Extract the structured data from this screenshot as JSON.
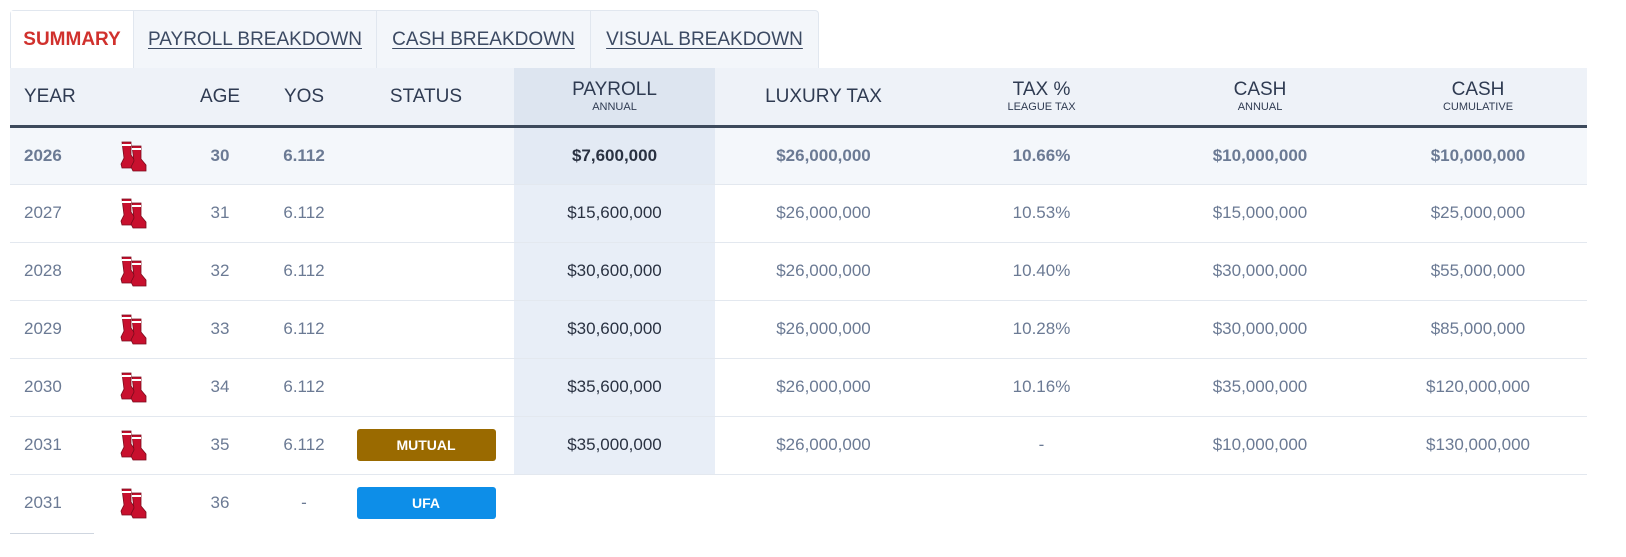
{
  "tabs": [
    {
      "label": "SUMMARY",
      "active": true
    },
    {
      "label": "PAYROLL BREAKDOWN",
      "active": false
    },
    {
      "label": "CASH BREAKDOWN",
      "active": false
    },
    {
      "label": "VISUAL BREAKDOWN",
      "active": false
    }
  ],
  "table": {
    "headers": {
      "year": "YEAR",
      "age": "AGE",
      "yos": "YOS",
      "status": "STATUS",
      "payroll": "PAYROLL",
      "payroll_sub": "ANNUAL",
      "luxury_tax": "LUXURY TAX",
      "tax_pct": "TAX %",
      "tax_pct_sub": "LEAGUE TAX",
      "cash": "CASH",
      "cash_sub": "ANNUAL",
      "cash_cum": "CASH",
      "cash_cum_sub": "CUMULATIVE"
    },
    "rows": [
      {
        "year": "2026",
        "team_icon": "red-sox-logo-icon",
        "age": "30",
        "yos": "6.112",
        "status": "",
        "payroll": "$7,600,000",
        "luxury_tax": "$26,000,000",
        "tax_pct": "10.66%",
        "cash": "$10,000,000",
        "cash_cum": "$10,000,000"
      },
      {
        "year": "2027",
        "team_icon": "red-sox-logo-icon",
        "age": "31",
        "yos": "6.112",
        "status": "",
        "payroll": "$15,600,000",
        "luxury_tax": "$26,000,000",
        "tax_pct": "10.53%",
        "cash": "$15,000,000",
        "cash_cum": "$25,000,000"
      },
      {
        "year": "2028",
        "team_icon": "red-sox-logo-icon",
        "age": "32",
        "yos": "6.112",
        "status": "",
        "payroll": "$30,600,000",
        "luxury_tax": "$26,000,000",
        "tax_pct": "10.40%",
        "cash": "$30,000,000",
        "cash_cum": "$55,000,000"
      },
      {
        "year": "2029",
        "team_icon": "red-sox-logo-icon",
        "age": "33",
        "yos": "6.112",
        "status": "",
        "payroll": "$30,600,000",
        "luxury_tax": "$26,000,000",
        "tax_pct": "10.28%",
        "cash": "$30,000,000",
        "cash_cum": "$85,000,000"
      },
      {
        "year": "2030",
        "team_icon": "red-sox-logo-icon",
        "age": "34",
        "yos": "6.112",
        "status": "",
        "payroll": "$35,600,000",
        "luxury_tax": "$26,000,000",
        "tax_pct": "10.16%",
        "cash": "$35,000,000",
        "cash_cum": "$120,000,000"
      },
      {
        "year": "2031",
        "team_icon": "red-sox-logo-icon",
        "age": "35",
        "yos": "6.112",
        "status": "MUTUAL",
        "payroll": "$35,000,000",
        "luxury_tax": "$26,000,000",
        "tax_pct": "-",
        "cash": "$10,000,000",
        "cash_cum": "$130,000,000"
      },
      {
        "year": "2031",
        "team_icon": "red-sox-logo-icon",
        "age": "36",
        "yos": "-",
        "status": "UFA",
        "payroll": "",
        "luxury_tax": "",
        "tax_pct": "",
        "cash": "",
        "cash_cum": ""
      }
    ]
  },
  "colors": {
    "active_tab": "#d0312d",
    "mutual_badge": "#9a6a00",
    "ufa_badge": "#0d8ee8",
    "logo_red": "#c8102e"
  }
}
